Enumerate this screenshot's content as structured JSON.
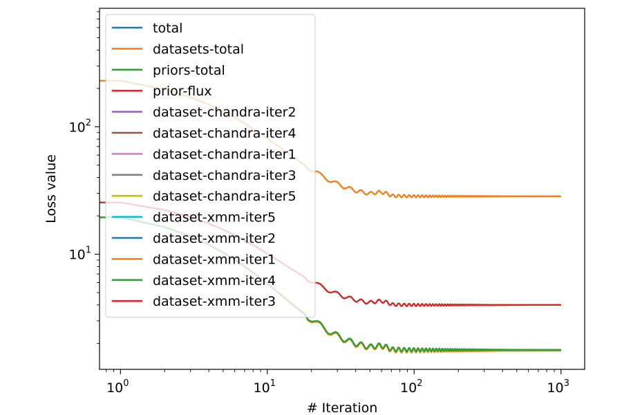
{
  "chart_data": {
    "type": "line",
    "xscale": "log",
    "yscale": "log",
    "xlabel": "# Iteration",
    "ylabel": "Loss value",
    "xlim": [
      0.72,
      1450
    ],
    "ylim": [
      1.25,
      850
    ],
    "grid": false,
    "legend_position": "upper-left",
    "x_ticks": [
      {
        "value": 1,
        "base": "10",
        "exp": "0"
      },
      {
        "value": 10,
        "base": "10",
        "exp": "1"
      },
      {
        "value": 100,
        "base": "10",
        "exp": "2"
      },
      {
        "value": 1000,
        "base": "10",
        "exp": "3"
      }
    ],
    "y_ticks": [
      {
        "value": 10,
        "base": "10",
        "exp": "1"
      },
      {
        "value": 100,
        "base": "10",
        "exp": "2"
      }
    ],
    "series": [
      {
        "name": "total",
        "color": "#1f77b4",
        "start": 230,
        "end": 28.5,
        "oscillation": 0.04
      },
      {
        "name": "datasets-total",
        "color": "#ff7f0e",
        "start": 230,
        "end": 28.5,
        "oscillation": 0.04
      },
      {
        "name": "priors-total",
        "color": "#2ca02c",
        "start": 25.5,
        "end": 4.0,
        "oscillation": 0.04
      },
      {
        "name": "prior-flux",
        "color": "#d62728",
        "start": 25.5,
        "end": 4.0,
        "oscillation": 0.04
      },
      {
        "name": "dataset-chandra-iter2",
        "color": "#9467bd",
        "start": 19.5,
        "end": 1.75,
        "oscillation": 0.06
      },
      {
        "name": "dataset-chandra-iter4",
        "color": "#8c564b",
        "start": 19.5,
        "end": 1.77,
        "oscillation": 0.06
      },
      {
        "name": "dataset-chandra-iter1",
        "color": "#e377c2",
        "start": 19.5,
        "end": 1.76,
        "oscillation": 0.06
      },
      {
        "name": "dataset-chandra-iter3",
        "color": "#7f7f7f",
        "start": 19.5,
        "end": 1.78,
        "oscillation": 0.06
      },
      {
        "name": "dataset-chandra-iter5",
        "color": "#bcbd22",
        "start": 19.5,
        "end": 1.75,
        "oscillation": 0.06
      },
      {
        "name": "dataset-xmm-iter5",
        "color": "#17becf",
        "start": 19.5,
        "end": 1.76,
        "oscillation": 0.06
      },
      {
        "name": "dataset-xmm-iter2",
        "color": "#1f77b4",
        "start": 19.5,
        "end": 1.77,
        "oscillation": 0.06
      },
      {
        "name": "dataset-xmm-iter1",
        "color": "#ff7f0e",
        "start": 19.5,
        "end": 1.75,
        "oscillation": 0.06
      },
      {
        "name": "dataset-xmm-iter4",
        "color": "#2ca02c",
        "start": 19.5,
        "end": 1.78,
        "oscillation": 0.06
      },
      {
        "name": "dataset-xmm-iter3",
        "color": "#d62728",
        "start": 25.5,
        "end": 4.0,
        "oscillation": 0.04
      }
    ]
  }
}
